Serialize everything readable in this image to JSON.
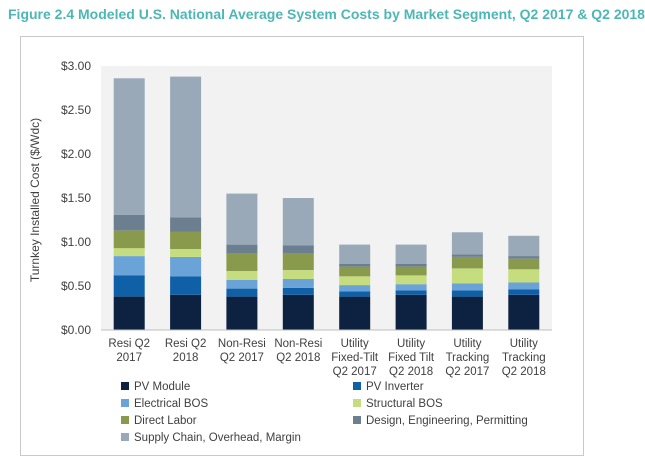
{
  "title": "Figure 2.4 Modeled U.S. National Average System Costs by Market Segment, Q2 2017 & Q2 2018",
  "chart_data": {
    "type": "bar",
    "stacked": true,
    "ylabel": "Turnkey Installed Cost ($/Wdc)",
    "xlabel": "",
    "ylim": [
      0,
      3.0
    ],
    "yticks": [
      "$0.00",
      "$0.50",
      "$1.00",
      "$1.50",
      "$2.00",
      "$2.50",
      "$3.00"
    ],
    "ytick_values": [
      0,
      0.5,
      1.0,
      1.5,
      2.0,
      2.5,
      3.0
    ],
    "grid": false,
    "legend_position": "bottom",
    "categories": [
      [
        "Resi Q2",
        "2017"
      ],
      [
        "Resi Q2",
        "2018"
      ],
      [
        "Non-Resi",
        "Q2 2017"
      ],
      [
        "Non-Resi",
        "Q2 2018"
      ],
      [
        "Utility",
        "Fixed-Tilt",
        "Q2 2017"
      ],
      [
        "Utility",
        "Fixed Tilt",
        "Q2 2018"
      ],
      [
        "Utility",
        "Tracking",
        "Q2 2017"
      ],
      [
        "Utility",
        "Tracking",
        "Q2 2018"
      ]
    ],
    "series": [
      {
        "name": "PV Module",
        "color": "#0d2240",
        "values": [
          0.38,
          0.4,
          0.38,
          0.4,
          0.38,
          0.4,
          0.38,
          0.4
        ]
      },
      {
        "name": "PV Inverter",
        "color": "#1060a8",
        "values": [
          0.24,
          0.21,
          0.09,
          0.08,
          0.06,
          0.05,
          0.07,
          0.06
        ]
      },
      {
        "name": "Electrical BOS",
        "color": "#6aa3d8",
        "values": [
          0.22,
          0.22,
          0.1,
          0.1,
          0.07,
          0.07,
          0.08,
          0.08
        ]
      },
      {
        "name": "Structural BOS",
        "color": "#c5dd7e",
        "values": [
          0.09,
          0.09,
          0.1,
          0.1,
          0.1,
          0.1,
          0.17,
          0.15
        ]
      },
      {
        "name": "Direct Labor",
        "color": "#8a9a4c",
        "values": [
          0.2,
          0.2,
          0.2,
          0.19,
          0.11,
          0.1,
          0.13,
          0.12
        ]
      },
      {
        "name": "Design, Engineering, Permitting",
        "color": "#6c7f90",
        "values": [
          0.18,
          0.16,
          0.1,
          0.09,
          0.03,
          0.03,
          0.03,
          0.03
        ]
      },
      {
        "name": "Supply Chain, Overhead, Margin",
        "color": "#9aa9b8",
        "values": [
          1.55,
          1.6,
          0.58,
          0.54,
          0.22,
          0.22,
          0.25,
          0.23
        ]
      }
    ]
  }
}
